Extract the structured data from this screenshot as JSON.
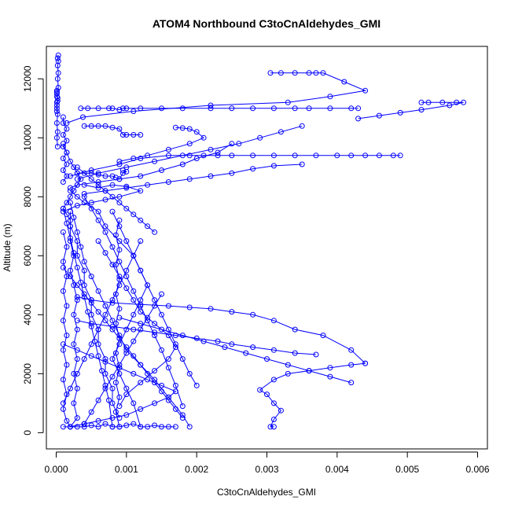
{
  "chart_data": {
    "type": "line",
    "title": "ATOM4 Northbound C3toCnAldehydes_GMI",
    "xlabel": "C3toCnAldehydes_GMI",
    "ylabel": "Altitude (m)",
    "xlim": [
      -0.00014,
      0.00614
    ],
    "ylim": [
      -550,
      13100
    ],
    "x_ticks": [
      {
        "value": 0,
        "label": "0.000"
      },
      {
        "value": 0.001,
        "label": "0.001"
      },
      {
        "value": 0.002,
        "label": "0.002"
      },
      {
        "value": 0.003,
        "label": "0.003"
      },
      {
        "value": 0.004,
        "label": "0.004"
      },
      {
        "value": 0.005,
        "label": "0.005"
      },
      {
        "value": 0.006,
        "label": "0.006"
      }
    ],
    "y_ticks": [
      {
        "value": 0,
        "label": "0"
      },
      {
        "value": 2000,
        "label": "2000"
      },
      {
        "value": 4000,
        "label": "4000"
      },
      {
        "value": 6000,
        "label": "6000"
      },
      {
        "value": 8000,
        "label": "8000"
      },
      {
        "value": 10000,
        "label": "10000"
      },
      {
        "value": 12000,
        "label": "12000"
      }
    ],
    "grid": false,
    "legend": "none",
    "series_color": "#0000ff",
    "marker": "open-circle",
    "series": [
      {
        "x": [
          3e-05,
          2e-05,
          3e-05,
          2e-05,
          3e-05,
          2e-05,
          3e-05,
          1e-05,
          1e-05,
          2e-05,
          1e-05,
          1e-05
        ],
        "y": [
          12800,
          12700,
          12600,
          12450,
          12200,
          12000,
          11700,
          11550,
          11400,
          11250,
          11100,
          10900
        ]
      },
      {
        "x": [
          1e-05,
          1e-05,
          2e-05,
          1e-05,
          1e-05,
          2e-05,
          1e-05,
          2e-05,
          1e-05,
          2e-05
        ],
        "y": [
          11600,
          11500,
          11350,
          11200,
          11000,
          10800,
          10500,
          10200,
          10000,
          9700
        ]
      },
      {
        "x": [
          0.00035,
          0.00045,
          0.0006,
          0.00075,
          0.0008,
          0.0009,
          0.00095,
          0.001,
          0.0012,
          0.0015,
          0.0018,
          0.0022,
          0.0025,
          0.0028,
          0.0031,
          0.0034,
          0.0036,
          0.0039,
          0.0042,
          0.0043
        ],
        "y": [
          11000,
          11000,
          11000,
          11000,
          11000,
          10950,
          11000,
          11000,
          11000,
          11000,
          11000,
          11000,
          11000,
          11000,
          11000,
          11000,
          11000,
          11000,
          11000,
          11000
        ]
      },
      {
        "x": [
          0.0052,
          0.0053,
          0.0055,
          0.0057,
          0.0058,
          0.0056,
          0.0052,
          0.0049,
          0.0046,
          0.0043
        ],
        "y": [
          11200,
          11200,
          11200,
          11200,
          11200,
          11100,
          10950,
          10850,
          10750,
          10650
        ]
      },
      {
        "x": [
          0.00305,
          0.0032,
          0.0034,
          0.0036,
          0.0037,
          0.0038,
          0.0041,
          0.0044,
          0.0039,
          0.0033,
          0.0022,
          0.0011,
          0.00038,
          0.00015
        ],
        "y": [
          12200,
          12200,
          12200,
          12200,
          12200,
          12200,
          11900,
          11600,
          11400,
          11200,
          11100,
          10900,
          10700,
          10500
        ]
      },
      {
        "x": [
          0.0049,
          0.0048,
          0.0046,
          0.0044,
          0.0042,
          0.004,
          0.0037,
          0.0034,
          0.0031,
          0.0028,
          0.0025,
          0.0023,
          0.0021,
          0.0019,
          0.0016,
          0.0012,
          0.0009,
          0.0005,
          0.0002
        ],
        "y": [
          9400,
          9400,
          9400,
          9400,
          9400,
          9400,
          9400,
          9400,
          9400,
          9400,
          9400,
          9400,
          9400,
          9400,
          9400,
          9300,
          9100,
          8900,
          8700
        ]
      },
      {
        "x": [
          0.0035,
          0.0031,
          0.0028,
          0.0025,
          0.0022,
          0.0019,
          0.0016,
          0.0013,
          0.001,
          0.0007,
          0.0004
        ],
        "y": [
          9100,
          9050,
          8950,
          8800,
          8700,
          8600,
          8500,
          8400,
          8300,
          8200,
          8100
        ]
      },
      {
        "x": [
          0.0004,
          0.0005,
          0.0006,
          0.0007,
          0.0008,
          0.0009,
          0.00095,
          0.001,
          0.0011,
          0.0012
        ],
        "y": [
          10400,
          10400,
          10400,
          10400,
          10350,
          10300,
          10100,
          10100,
          10100,
          10100
        ]
      },
      {
        "x": [
          0.0017,
          0.0018,
          0.0019,
          0.002,
          0.0021,
          0.0019,
          0.0016,
          0.0013,
          0.0011,
          0.0009
        ],
        "y": [
          10350,
          10330,
          10300,
          10200,
          10000,
          9800,
          9600,
          9400,
          9300,
          9200
        ]
      },
      {
        "x": [
          0.0025,
          0.0023,
          0.002,
          0.0018,
          0.0015,
          0.0012,
          0.0009,
          0.0006,
          0.0003,
          0.0002
        ],
        "y": [
          9800,
          9500,
          9300,
          9100,
          8900,
          8700,
          8600,
          8500,
          8400,
          8300
        ]
      },
      {
        "x": [
          0.0035,
          0.0032,
          0.0029,
          0.0026,
          0.0022,
          0.0018,
          0.0014,
          0.001,
          0.0006,
          0.0003
        ],
        "y": [
          10400,
          10200,
          10000,
          9800,
          9600,
          9400,
          9200,
          9000,
          8800,
          8600
        ]
      },
      {
        "x": [
          0.0004,
          0.0006,
          0.0008,
          0.001,
          0.0012,
          0.0009,
          0.0007,
          0.0005,
          0.0003,
          0.0001
        ],
        "y": [
          8400,
          8300,
          8400,
          8350,
          8200,
          8000,
          7900,
          7800,
          7700,
          7500
        ]
      },
      {
        "x": [
          0.0002,
          0.0003,
          0.0004,
          0.0006,
          0.0007,
          0.0009,
          0.0011,
          0.0012,
          0.0013,
          0.0014,
          0.0015,
          0.0016,
          0.0017,
          0.0018,
          0.0019,
          0.002
        ],
        "y": [
          8200,
          8000,
          7800,
          7500,
          7000,
          6500,
          6000,
          5500,
          5000,
          4500,
          4000,
          3500,
          3000,
          2500,
          2000,
          1600
        ]
      },
      {
        "x": [
          0.0004,
          0.0005,
          0.0006,
          0.0007,
          0.0008,
          0.0009,
          0.001,
          0.0011,
          0.0012,
          0.0013,
          0.0014,
          0.0015,
          0.0016,
          0.0017,
          0.0018
        ],
        "y": [
          8000,
          7600,
          7200,
          6800,
          6300,
          5800,
          5300,
          4800,
          4300,
          3800,
          3300,
          2800,
          2200,
          1600,
          900
        ]
      },
      {
        "x": [
          0.0002,
          0.00025,
          0.0003,
          0.00035,
          0.0004,
          0.0005,
          0.0006,
          0.0007,
          0.0008,
          0.0009,
          0.001,
          0.0012,
          0.0014,
          0.0016,
          0.0018,
          0.0019
        ],
        "y": [
          7800,
          7300,
          6800,
          6300,
          5800,
          5300,
          4800,
          4300,
          3800,
          3300,
          2800,
          2300,
          1800,
          1200,
          600,
          200
        ]
      },
      {
        "x": [
          0.0002,
          0.0002,
          0.0003,
          0.0003,
          0.0004,
          0.0004,
          0.0005,
          0.0005,
          0.0006,
          0.0006,
          0.0007,
          0.0007,
          0.0008,
          0.0008,
          0.0009
        ],
        "y": [
          7500,
          7000,
          6500,
          6000,
          5500,
          5000,
          4500,
          4000,
          3500,
          3000,
          2500,
          2000,
          1500,
          1000,
          500
        ]
      },
      {
        "x": [
          0.0001,
          0.00015,
          0.0002,
          0.00025,
          0.0003,
          0.00035,
          0.0004,
          0.00045,
          0.0005,
          0.00055,
          0.0006,
          0.00065,
          0.0007,
          0.00075,
          0.0008
        ],
        "y": [
          7600,
          7100,
          6600,
          6100,
          5600,
          5100,
          4600,
          4100,
          3600,
          3100,
          2600,
          2100,
          1600,
          1100,
          200
        ]
      },
      {
        "x": [
          0.0002,
          0.0002,
          0.00025,
          0.0002,
          0.00025,
          0.0003,
          0.00025,
          0.0003,
          0.00025,
          0.0003,
          0.00025,
          0.0003,
          0.00025,
          0.0003,
          0.0002
        ],
        "y": [
          7000,
          6500,
          6000,
          5500,
          5000,
          4500,
          4000,
          3500,
          3000,
          2500,
          2000,
          1500,
          1000,
          500,
          200
        ]
      },
      {
        "x": [
          0.0001,
          0.00015,
          0.0001,
          0.00015,
          0.0001,
          0.00015,
          0.0001,
          0.00015,
          0.0001,
          0.00015,
          0.0001,
          0.00015,
          0.0001,
          0.00015,
          0.0002
        ],
        "y": [
          6800,
          6300,
          5800,
          5300,
          4800,
          4300,
          3800,
          3300,
          2800,
          2300,
          1800,
          1300,
          800,
          400,
          200
        ]
      },
      {
        "x": [
          0.0006,
          0.0007,
          0.0008,
          0.0009,
          0.001,
          0.0011,
          0.0012,
          0.0014,
          0.0016,
          0.0017,
          0.0016,
          0.0014,
          0.0012,
          0.001,
          0.0009
        ],
        "y": [
          6500,
          6100,
          5700,
          5300,
          4900,
          4500,
          4100,
          3700,
          3300,
          2900,
          2500,
          2100,
          1700,
          1300,
          900
        ]
      },
      {
        "x": [
          0.0008,
          0.0009,
          0.001,
          0.0011,
          0.0012,
          0.0013,
          0.0012,
          0.0011,
          0.001,
          0.0009,
          0.0008,
          0.0009,
          0.001,
          0.0011,
          0.0012
        ],
        "y": [
          7500,
          7000,
          6500,
          6000,
          5500,
          5000,
          4500,
          4000,
          3500,
          3000,
          2500,
          2000,
          1500,
          1000,
          200
        ]
      },
      {
        "x": [
          0.0009,
          0.00085,
          0.0009,
          0.00085,
          0.0009,
          0.00085,
          0.0009,
          0.00085,
          0.0009,
          0.00085,
          0.0009,
          0.00085,
          0.0009,
          0.00085,
          0.0009
        ],
        "y": [
          7200,
          6700,
          6200,
          5700,
          5200,
          4700,
          4200,
          3700,
          3200,
          2700,
          2200,
          1700,
          1200,
          700,
          200
        ]
      },
      {
        "x": [
          0.0003,
          0.0005,
          0.0008,
          0.0012,
          0.0016,
          0.0019,
          0.0022,
          0.0025,
          0.0028,
          0.0031,
          0.0034,
          0.0038,
          0.0042,
          0.0044
        ],
        "y": [
          4600,
          4500,
          4400,
          4350,
          4300,
          4250,
          4200,
          4100,
          4000,
          3800,
          3500,
          3300,
          2800,
          2350
        ]
      },
      {
        "x": [
          0.0044,
          0.0042,
          0.0039,
          0.0036,
          0.0033,
          0.0031,
          0.0029,
          0.003,
          0.0031,
          0.0032,
          0.0031,
          0.00305,
          0.0031
        ],
        "y": [
          2350,
          2300,
          2200,
          2100,
          2000,
          1800,
          1450,
          1300,
          1000,
          750,
          450,
          200,
          200
        ]
      },
      {
        "x": [
          0.0037,
          0.0034,
          0.0031,
          0.0028,
          0.0025,
          0.0023,
          0.002,
          0.0017,
          0.0014,
          0.0011,
          0.0008,
          0.0005,
          0.0003
        ],
        "y": [
          2650,
          2700,
          2800,
          2900,
          3000,
          3100,
          3200,
          3300,
          3400,
          3500,
          3600,
          3700,
          3800
        ]
      },
      {
        "x": [
          0.0042,
          0.0039,
          0.0036,
          0.0033,
          0.003,
          0.0027,
          0.0024,
          0.0021,
          0.0018,
          0.0015,
          0.0012,
          0.0009
        ],
        "y": [
          1700,
          1900,
          2100,
          2300,
          2500,
          2700,
          2900,
          3100,
          3300,
          3500,
          3700,
          3900
        ]
      },
      {
        "x": [
          0.0001,
          0.0002,
          0.0003,
          0.0004,
          0.0005,
          0.0006,
          0.0007,
          0.0008,
          0.0009,
          0.001,
          0.0011,
          0.0012,
          0.0013,
          0.0014,
          0.0015,
          0.0016,
          0.0017
        ],
        "y": [
          200,
          200,
          200,
          200,
          250,
          200,
          300,
          200,
          200,
          250,
          300,
          200,
          200,
          250,
          200,
          200,
          200
        ]
      },
      {
        "x": [
          0.0001,
          0.0003,
          0.0005,
          0.0007,
          0.0009,
          0.0011,
          0.0013,
          0.0015,
          0.0017,
          0.0016,
          0.0014,
          0.0012,
          0.001,
          0.0008,
          0.0006,
          0.0004,
          0.0002
        ],
        "y": [
          3000,
          2800,
          2600,
          2400,
          2200,
          2000,
          1800,
          1600,
          1400,
          1200,
          1000,
          800,
          600,
          500,
          400,
          300,
          200
        ]
      },
      {
        "x": [
          0.0001,
          0.0002,
          0.0003,
          0.0004,
          0.0005,
          0.0006,
          0.0007,
          0.0008,
          0.0009,
          0.001,
          0.0011,
          0.0012,
          0.0013,
          0.0014,
          0.0015,
          0.0016,
          0.0017,
          0.0018
        ],
        "y": [
          5600,
          5300,
          5000,
          4700,
          4400,
          4100,
          3800,
          3500,
          3200,
          2900,
          2600,
          2300,
          2000,
          1700,
          1400,
          1100,
          800,
          500
        ]
      },
      {
        "x": [
          0.0012,
          0.0011,
          0.001,
          0.0009,
          0.0008,
          0.0007,
          0.0006,
          0.0005,
          0.0004,
          0.0003,
          0.0002,
          0.0001
        ],
        "y": [
          6500,
          6000,
          5500,
          5000,
          4500,
          4000,
          3500,
          3000,
          2500,
          2000,
          1500,
          1000
        ]
      },
      {
        "x": [
          0.0015,
          0.0014,
          0.0013,
          0.0012,
          0.0011,
          0.001,
          0.0009,
          0.0008,
          0.0007,
          0.0006,
          0.0005,
          0.0004
        ],
        "y": [
          4700,
          4300,
          3900,
          3500,
          3100,
          2700,
          2300,
          1900,
          1500,
          1100,
          700,
          300
        ]
      },
      {
        "x": [
          0.0003,
          0.0004,
          0.0005,
          0.0006,
          0.0007,
          0.0008,
          0.0009,
          0.001,
          0.0011,
          0.0012,
          0.0013,
          0.0014
        ],
        "y": [
          9000,
          8800,
          8600,
          8400,
          8200,
          8000,
          7800,
          7600,
          7400,
          7200,
          7000,
          6800
        ]
      },
      {
        "x": [
          0.0003,
          0.0005,
          0.0006,
          0.0007,
          0.0008,
          0.00085,
          0.0009,
          0.00095,
          0.001,
          0.00095
        ],
        "y": [
          8800,
          8800,
          8750,
          8700,
          8700,
          8650,
          8600,
          8800,
          8850,
          8900
        ]
      },
      {
        "x": [
          0.0001,
          0.00015,
          0.0002,
          0.00025,
          0.0003,
          0.00035,
          0.0003,
          0.00025,
          0.0002,
          0.00015,
          0.0001,
          0.00015,
          0.0002
        ],
        "y": [
          9800,
          9500,
          9200,
          9000,
          8800,
          8600,
          8400,
          8200,
          8000,
          7800,
          7600,
          7400,
          7200
        ]
      },
      {
        "x": [
          0.0001,
          0.0001,
          0.00015,
          0.0001,
          0.00015,
          0.0001,
          0.00015,
          0.0001,
          0.00015,
          0.0001,
          0.00015,
          0.0001
        ],
        "y": [
          10700,
          10500,
          10300,
          10100,
          9900,
          9700,
          9500,
          9300,
          9100,
          8900,
          8700,
          8500
        ]
      }
    ]
  }
}
